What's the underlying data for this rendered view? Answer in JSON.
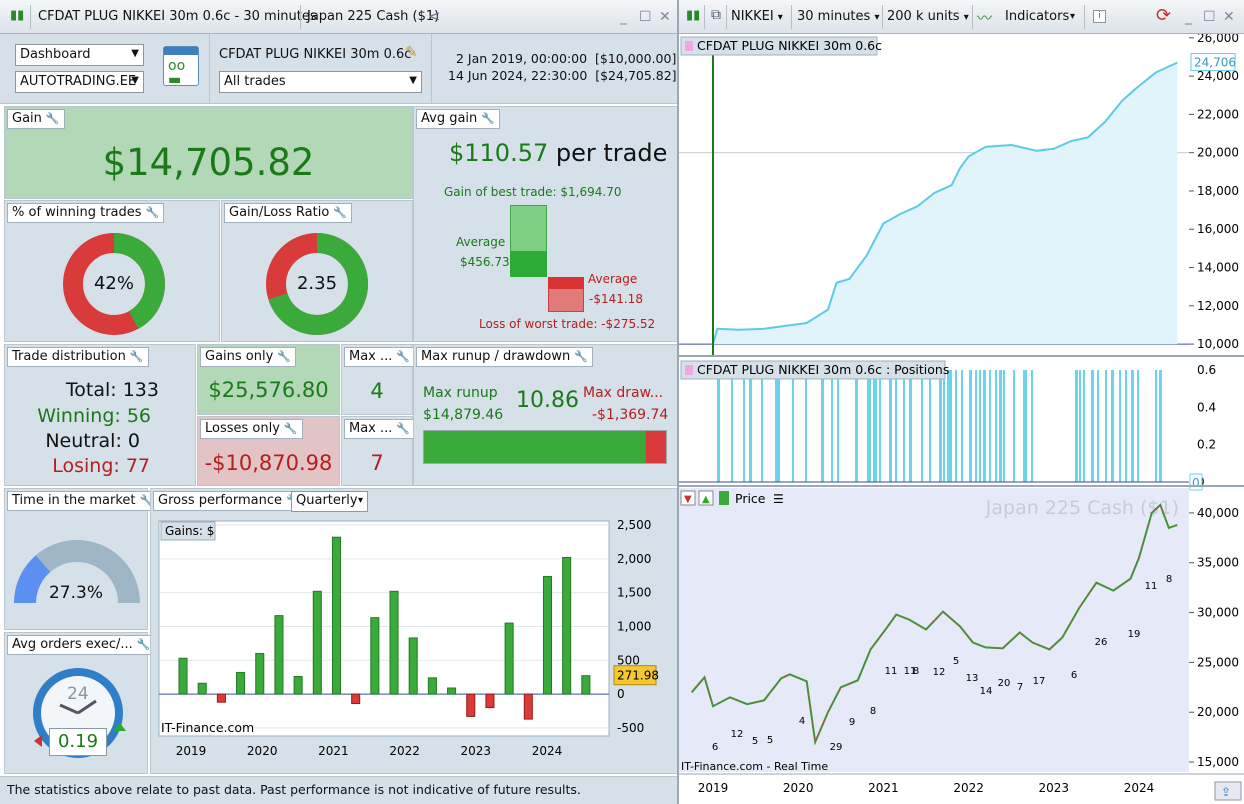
{
  "left_titlebar": {
    "title": "CFDAT PLUG NIKKEI 30m 0.6c - 30 minutes",
    "instrument": "Japan 225 Cash ($1)"
  },
  "right_titlebar": {
    "ticker": "NIKKEI",
    "timeframe": "30 minutes",
    "units": "200 k units",
    "indicators": "Indicators"
  },
  "header": {
    "view_select": "Dashboard",
    "account_select": "AUTOTRADING.EE",
    "strategy_name": "CFDAT PLUG NIKKEI 30m 0.6c",
    "trades_select": "All trades",
    "start_line": "2 Jan 2019, 00:00:00  [$10,000.00]",
    "end_line": "14 Jun 2024, 22:30:00  [$24,705.82]"
  },
  "gain": {
    "title": "Gain",
    "value": "$14,705.82"
  },
  "avg_gain": {
    "title": "Avg gain",
    "value": "$110.57",
    "suffix": "per trade",
    "best": "Gain of best trade: $1,694.70",
    "avg_label": "Average",
    "avg_win": "$456.73",
    "avg_label2": "Average",
    "avg_loss": "-$141.18",
    "worst": "Loss of worst trade: -$275.52"
  },
  "winning": {
    "title": "% of winning trades",
    "value": "42%",
    "fraction": 0.42
  },
  "glratio": {
    "title": "Gain/Loss Ratio",
    "value": "2.35",
    "fraction": 0.7
  },
  "distribution": {
    "title": "Trade distribution",
    "total": "Total: 133",
    "winning": "Winning: 56",
    "neutral": "Neutral: 0",
    "losing": "Losing: 77"
  },
  "gains_only": {
    "title": "Gains only",
    "value": "$25,576.80"
  },
  "losses_only": {
    "title": "Losses only",
    "value": "-$10,870.98"
  },
  "max_wins": {
    "title": "Max ...",
    "value": "4"
  },
  "max_losses": {
    "title": "Max ...",
    "value": "7"
  },
  "runup": {
    "title": "Max runup / drawdown",
    "runup_label": "Max runup",
    "runup_value": "$14,879.46",
    "ratio": "10.86",
    "dd_label": "Max draw...",
    "dd_value": "-$1,369.74",
    "runup_fraction": 0.916
  },
  "time_market": {
    "title": "Time in the market",
    "value": "27.3%",
    "fraction": 0.273
  },
  "avg_orders": {
    "title": "Avg orders exec/...",
    "clock_label": "24",
    "value": "0.19"
  },
  "gross": {
    "title": "Gross performance",
    "period": "Quarterly",
    "legend": "Gains: $",
    "watermark": "IT-Finance.com",
    "last_value": "271.98"
  },
  "chart_data": [
    {
      "type": "bar",
      "title": "Gross performance",
      "period": "Quarterly",
      "series": [
        {
          "name": "Gains: $",
          "values": [
            530,
            160,
            -120,
            320,
            600,
            1160,
            260,
            1520,
            2320,
            -140,
            1130,
            1520,
            830,
            240,
            90,
            -330,
            -200,
            1050,
            -370,
            1740,
            2020,
            272
          ]
        }
      ],
      "x_ticks": [
        "2019",
        "2020",
        "2021",
        "2022",
        "2023",
        "2024"
      ],
      "y_ticks": [
        "-500",
        "0",
        "500",
        "1,000",
        "1,500",
        "2,000",
        "2,500"
      ],
      "ylim": [
        -620,
        2560
      ]
    },
    {
      "type": "area",
      "title": "CFDAT PLUG NIKKEI 30m 0.6c",
      "last_label": "24,706",
      "points": [
        [
          2019.0,
          10000
        ],
        [
          2019.05,
          10800
        ],
        [
          2019.3,
          10750
        ],
        [
          2019.6,
          10800
        ],
        [
          2019.85,
          10950
        ],
        [
          2020.1,
          11100
        ],
        [
          2020.35,
          11800
        ],
        [
          2020.45,
          13200
        ],
        [
          2020.6,
          13400
        ],
        [
          2020.8,
          14600
        ],
        [
          2021.0,
          16300
        ],
        [
          2021.2,
          16800
        ],
        [
          2021.4,
          17200
        ],
        [
          2021.6,
          17900
        ],
        [
          2021.8,
          18300
        ],
        [
          2021.9,
          19200
        ],
        [
          2022.0,
          19800
        ],
        [
          2022.2,
          20300
        ],
        [
          2022.5,
          20400
        ],
        [
          2022.8,
          20100
        ],
        [
          2023.0,
          20200
        ],
        [
          2023.2,
          20600
        ],
        [
          2023.4,
          20800
        ],
        [
          2023.6,
          21600
        ],
        [
          2023.8,
          22700
        ],
        [
          2023.95,
          23300
        ],
        [
          2024.2,
          24200
        ],
        [
          2024.45,
          24706
        ]
      ],
      "y_ticks": [
        "10,000",
        "12,000",
        "14,000",
        "16,000",
        "18,000",
        "20,000",
        "22,000",
        "24,000",
        "26,000"
      ],
      "ylim": [
        9900,
        26200
      ]
    },
    {
      "type": "bar",
      "title": "CFDAT PLUG NIKKEI 30m 0.6c : Positions",
      "y_ticks": [
        "0",
        "0.2",
        "0.4",
        "0.6"
      ],
      "last_label": "0"
    },
    {
      "type": "line",
      "title": "Price",
      "watermark": "Japan 225 Cash ($1)",
      "source": "IT-Finance.com - Real Time",
      "points": [
        [
          2018.75,
          22000
        ],
        [
          2018.9,
          23500
        ],
        [
          2019.0,
          20600
        ],
        [
          2019.2,
          21500
        ],
        [
          2019.4,
          20800
        ],
        [
          2019.6,
          21200
        ],
        [
          2019.8,
          23400
        ],
        [
          2019.9,
          23800
        ],
        [
          2020.1,
          23100
        ],
        [
          2020.2,
          17000
        ],
        [
          2020.35,
          20000
        ],
        [
          2020.5,
          22500
        ],
        [
          2020.7,
          23200
        ],
        [
          2020.85,
          26300
        ],
        [
          2021.05,
          28600
        ],
        [
          2021.15,
          29800
        ],
        [
          2021.3,
          29300
        ],
        [
          2021.5,
          28300
        ],
        [
          2021.7,
          30100
        ],
        [
          2021.9,
          28600
        ],
        [
          2022.05,
          27000
        ],
        [
          2022.2,
          26500
        ],
        [
          2022.4,
          26400
        ],
        [
          2022.6,
          28000
        ],
        [
          2022.75,
          27000
        ],
        [
          2022.95,
          26300
        ],
        [
          2023.1,
          27500
        ],
        [
          2023.3,
          30500
        ],
        [
          2023.5,
          33000
        ],
        [
          2023.7,
          32200
        ],
        [
          2023.9,
          33400
        ],
        [
          2024.0,
          35500
        ],
        [
          2024.15,
          40000
        ],
        [
          2024.25,
          40800
        ],
        [
          2024.35,
          38500
        ],
        [
          2024.45,
          38800
        ]
      ],
      "annotations": [
        "6",
        "12",
        "5",
        "5",
        "4",
        "29",
        "9",
        "8",
        "11",
        "11",
        "8",
        "12",
        "5",
        "13",
        "14",
        "20",
        "7",
        "17",
        "6",
        "26",
        "19",
        "11",
        "8"
      ],
      "y_ticks": [
        "15,000",
        "20,000",
        "25,000",
        "30,000",
        "35,000",
        "40,000"
      ],
      "ylim": [
        14000,
        42500
      ]
    }
  ],
  "x_axis": [
    "2019",
    "2020",
    "2021",
    "2022",
    "2023",
    "2024"
  ],
  "footer": "The statistics above relate to past data. Past performance is not indicative of future results."
}
